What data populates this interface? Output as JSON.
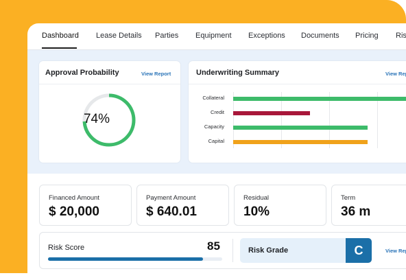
{
  "tabs": [
    "Dashboard",
    "Lease Details",
    "Parties",
    "Equipment",
    "Exceptions",
    "Documents",
    "Pricing",
    "Risk"
  ],
  "approval": {
    "title": "Approval Probability",
    "view_report": "View Report",
    "value_label": "74%",
    "value": 0.74,
    "color": "#3dbb6a"
  },
  "underwriting": {
    "title": "Underwriting Summary",
    "view_report": "View Report",
    "chart_data": {
      "type": "bar",
      "orientation": "horizontal",
      "categories": [
        "Collateral",
        "Credit",
        "Capacity",
        "Capital"
      ],
      "values": [
        100,
        40,
        70,
        70
      ],
      "colors": [
        "#3dbb6a",
        "#a8173a",
        "#3dbb6a",
        "#f0a21b"
      ],
      "xlim": [
        0,
        100
      ],
      "grid": true
    }
  },
  "stats": [
    {
      "label": "Financed Amount",
      "value": "$ 20,000"
    },
    {
      "label": "Payment Amount",
      "value": "$ 640.01"
    },
    {
      "label": "Residual",
      "value": "10%"
    },
    {
      "label": "Term",
      "value": "36 m"
    }
  ],
  "risk": {
    "score_label": "Risk Score",
    "score_value": "85",
    "score_fraction": 0.89,
    "grade_label": "Risk Grade",
    "grade_value": "C",
    "view_report": "View Report"
  },
  "colors": {
    "accent": "#1b6fa8",
    "link": "#2a74b8",
    "background_orange": "#fbb023",
    "panel_bg": "#e9f1fb"
  }
}
